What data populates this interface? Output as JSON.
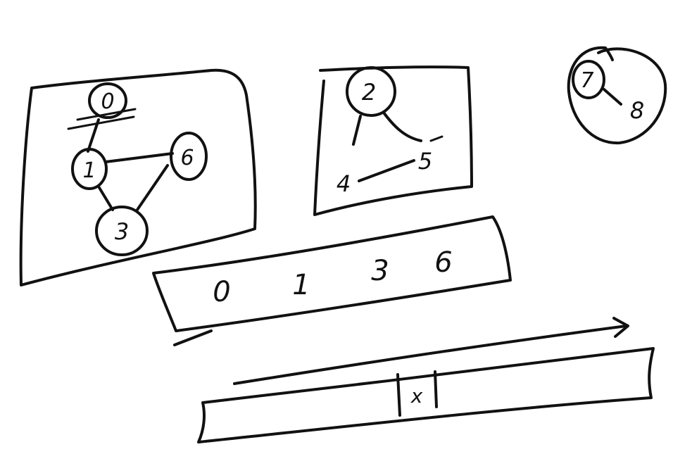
{
  "components": {
    "graph_a": {
      "nodes": [
        {
          "id": "n0",
          "label": "0"
        },
        {
          "id": "n1",
          "label": "1"
        },
        {
          "id": "n6",
          "label": "6"
        },
        {
          "id": "n3",
          "label": "3"
        }
      ],
      "edges": [
        [
          "n0",
          "n1"
        ],
        [
          "n1",
          "n6"
        ],
        [
          "n1",
          "n3"
        ],
        [
          "n3",
          "n6"
        ]
      ]
    },
    "graph_b": {
      "nodes": [
        {
          "id": "n2",
          "label": "2"
        },
        {
          "id": "n4",
          "label": "4"
        },
        {
          "id": "n5",
          "label": "5"
        }
      ],
      "edges": [
        [
          "n2",
          "n4"
        ],
        [
          "n2",
          "n5"
        ],
        [
          "n4",
          "n5"
        ]
      ]
    },
    "graph_c": {
      "nodes": [
        {
          "id": "n7",
          "label": "7"
        },
        {
          "id": "n8",
          "label": "8"
        }
      ],
      "edges": [
        [
          "n7",
          "n8"
        ]
      ]
    }
  },
  "result_box": {
    "values": [
      "0",
      "1",
      "3",
      "6"
    ]
  },
  "array_strip": {
    "marked_cell": "x"
  }
}
